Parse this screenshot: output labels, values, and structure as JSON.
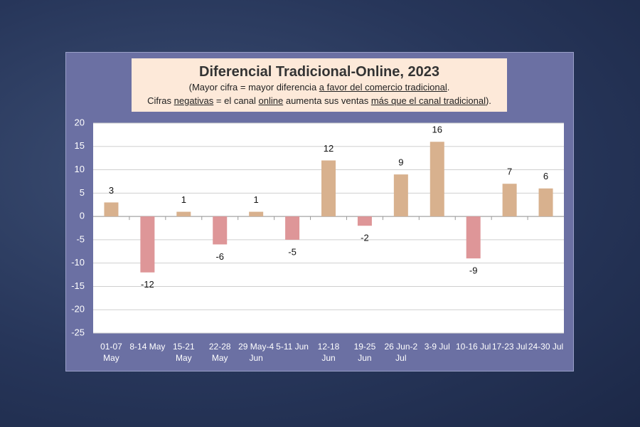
{
  "chart_data": {
    "type": "bar",
    "title": "Diferencial Tradicional-Online, 2023",
    "subtitle": [
      [
        {
          "text": "(Mayor cifra = mayor diferencia ",
          "underline": false
        },
        {
          "text": "a favor del comercio tradicional",
          "underline": true
        },
        {
          "text": ".",
          "underline": false
        }
      ],
      [
        {
          "text": "Cifras ",
          "underline": false
        },
        {
          "text": "negativas",
          "underline": true
        },
        {
          "text": " = el canal ",
          "underline": false
        },
        {
          "text": "online",
          "underline": true
        },
        {
          "text": " aumenta sus ventas ",
          "underline": false
        },
        {
          "text": "más que el canal tradicional",
          "underline": true
        },
        {
          "text": ").",
          "underline": false
        }
      ]
    ],
    "categories": [
      "01-07 May",
      "8-14 May",
      "15-21 May",
      "22-28 May",
      "29 May-4 Jun",
      "5-11 Jun",
      "12-18 Jun",
      "19-25 Jun",
      "26 Jun-2 Jul",
      "3-9 Jul",
      "10-16 Jul",
      "17-23 Jul",
      "24-30 Jul"
    ],
    "values": [
      3,
      -12,
      1,
      -6,
      1,
      -5,
      12,
      -2,
      9,
      16,
      -9,
      7,
      6
    ],
    "positive_color": "#d8b18e",
    "negative_color": "#de9698",
    "ylim": [
      -25,
      20
    ],
    "yticks": [
      -25,
      -20,
      -15,
      -10,
      -5,
      0,
      5,
      10,
      15,
      20
    ],
    "grid": true
  }
}
